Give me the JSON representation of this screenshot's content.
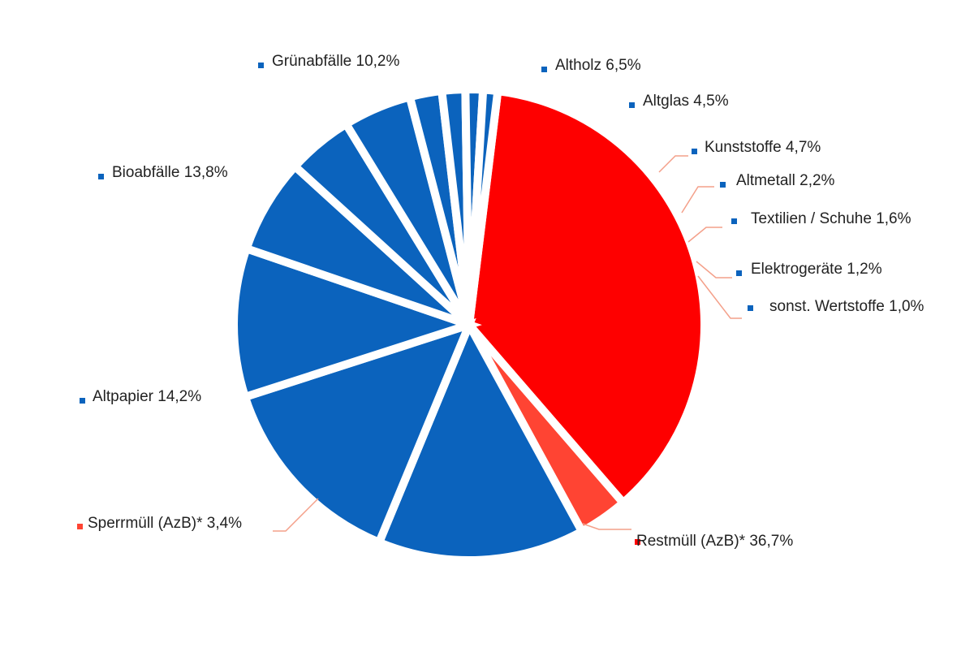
{
  "chart_data": {
    "type": "pie",
    "title": "",
    "slices": [
      {
        "label": "Restmüll (AzB)* 36,7%",
        "category": "Restmüll (AzB)*",
        "value": 36.7,
        "color": "#fe0000"
      },
      {
        "label": "Sperrmüll (AzB)* 3,4%",
        "category": "Sperrmüll (AzB)*",
        "value": 3.4,
        "color": "#ff4433"
      },
      {
        "label": "Altpapier 14,2%",
        "category": "Altpapier",
        "value": 14.2,
        "color": "#0b63bd"
      },
      {
        "label": "Bioabfälle 13,8%",
        "category": "Bioabfälle",
        "value": 13.8,
        "color": "#0b63bd"
      },
      {
        "label": "Grünabfälle 10,2%",
        "category": "Grünabfälle",
        "value": 10.2,
        "color": "#0b63bd"
      },
      {
        "label": "Altholz 6,5%",
        "category": "Altholz",
        "value": 6.5,
        "color": "#0b63bd"
      },
      {
        "label": "Altglas 4,5%",
        "category": "Altglas",
        "value": 4.5,
        "color": "#0b63bd"
      },
      {
        "label": "Kunststoffe 4,7%",
        "category": "Kunststoffe",
        "value": 4.7,
        "color": "#0b63bd"
      },
      {
        "label": "Altmetall 2,2%",
        "category": "Altmetall",
        "value": 2.2,
        "color": "#0b63bd"
      },
      {
        "label": "Textilien / Schuhe 1,6%",
        "category": "Textilien / Schuhe",
        "value": 1.6,
        "color": "#0b63bd"
      },
      {
        "label": "Elektrogeräte 1,2%",
        "category": "Elektrogeräte",
        "value": 1.2,
        "color": "#0b63bd"
      },
      {
        "label": "sonst. Wertstoffe 1,0%",
        "category": "sonst. Wertstoffe",
        "value": 1.0,
        "color": "#0b63bd"
      }
    ],
    "legend": "none",
    "data_labels": "outside",
    "leader_line_color": "#f4a08a"
  }
}
